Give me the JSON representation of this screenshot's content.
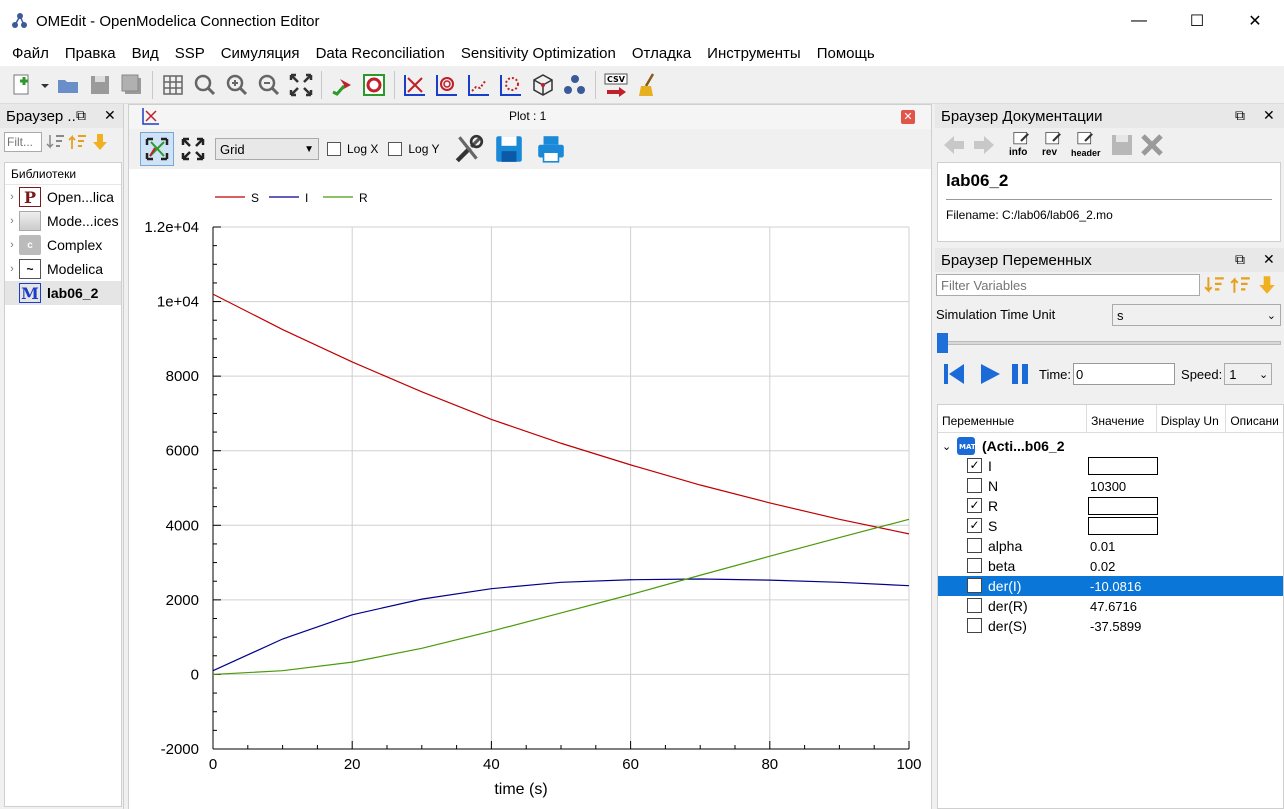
{
  "window": {
    "title": "OMEdit - OpenModelica Connection Editor",
    "minimize": "—",
    "maximize": "☐",
    "close": "✕"
  },
  "menu": [
    "Файл",
    "Правка",
    "Вид",
    "SSP",
    "Симуляция",
    "Data Reconciliation",
    "Sensitivity Optimization",
    "Отладка",
    "Инструменты",
    "Помощь"
  ],
  "library_browser": {
    "title": "Браузер ..",
    "filter_placeholder": "Filt...",
    "header": "Библиотеки",
    "items": [
      {
        "label": "Open...lica",
        "icon": "P"
      },
      {
        "label": "Mode...ices",
        "icon": ""
      },
      {
        "label": "Complex",
        "icon": "c"
      },
      {
        "label": "Modelica",
        "icon": "~"
      },
      {
        "label": "lab06_2",
        "icon": "M",
        "selected": true
      }
    ]
  },
  "plot": {
    "title": "Plot : 1",
    "grid_option": "Grid",
    "logx_label": "Log X",
    "logy_label": "Log Y"
  },
  "chart_data": {
    "type": "line",
    "xlabel": "time (s)",
    "ylabel": "",
    "xlim": [
      0,
      100
    ],
    "ylim": [
      -2000,
      12000
    ],
    "x_ticks": [
      "0",
      "20",
      "40",
      "60",
      "80",
      "100"
    ],
    "y_ticks": [
      "-2000",
      "0",
      "2000",
      "4000",
      "6000",
      "8000",
      "1e+04",
      "1.2e+04"
    ],
    "legend": "top-left",
    "grid": true,
    "series": [
      {
        "name": "S",
        "color": "#c00000",
        "x": [
          0,
          10,
          20,
          30,
          40,
          50,
          60,
          70,
          80,
          90,
          100
        ],
        "y": [
          10200,
          9250,
          8380,
          7580,
          6840,
          6200,
          5620,
          5080,
          4600,
          4160,
          3770
        ]
      },
      {
        "name": "I",
        "color": "#00008b",
        "x": [
          0,
          10,
          20,
          30,
          40,
          50,
          60,
          70,
          80,
          90,
          100
        ],
        "y": [
          100,
          950,
          1600,
          2020,
          2300,
          2470,
          2540,
          2560,
          2530,
          2470,
          2380
        ]
      },
      {
        "name": "R",
        "color": "#4a9a0a",
        "x": [
          0,
          10,
          20,
          30,
          40,
          50,
          60,
          70,
          80,
          90,
          100
        ],
        "y": [
          0,
          100,
          330,
          700,
          1160,
          1650,
          2140,
          2660,
          3170,
          3670,
          4160
        ]
      }
    ]
  },
  "doc_browser": {
    "title": "Браузер Документации",
    "info": "info",
    "rev": "rev",
    "header": "header",
    "model": "lab06_2",
    "filename": "Filename: C:/lab06/lab06_2.mo"
  },
  "var_browser": {
    "title": "Браузер Переменных",
    "filter_placeholder": "Filter Variables",
    "time_unit_label": "Simulation Time Unit",
    "time_unit_value": "s",
    "time_label": "Time:",
    "time_value": "0",
    "speed_label": "Speed:",
    "speed_value": "1",
    "columns": [
      "Переменные",
      "Значение",
      "Display Un",
      "Описани"
    ],
    "root": "(Acti...b06_2",
    "rows": [
      {
        "name": "I",
        "value": "",
        "checked": true,
        "color": true
      },
      {
        "name": "N",
        "value": "10300",
        "checked": false,
        "color": false
      },
      {
        "name": "R",
        "value": "",
        "checked": true,
        "color": true
      },
      {
        "name": "S",
        "value": "",
        "checked": true,
        "color": true
      },
      {
        "name": "alpha",
        "value": "0.01",
        "checked": false,
        "color": false
      },
      {
        "name": "beta",
        "value": "0.02",
        "checked": false,
        "color": false
      },
      {
        "name": "der(I)",
        "value": "-10.0816",
        "checked": false,
        "color": false,
        "selected": true
      },
      {
        "name": "der(R)",
        "value": "47.6716",
        "checked": false,
        "color": false
      },
      {
        "name": "der(S)",
        "value": "-37.5899",
        "checked": false,
        "color": false
      }
    ]
  }
}
